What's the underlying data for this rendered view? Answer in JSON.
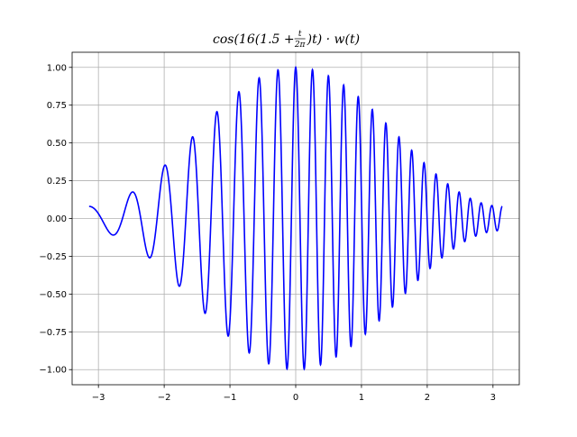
{
  "chart_data": {
    "type": "line",
    "title": "cos(16(1.5 + t/2π)t) · w(t)",
    "title_parts": {
      "prefix": "cos(16(1.5 + ",
      "frac_num": "t",
      "frac_den": "2π",
      "suffix": ")t) · w(t)"
    },
    "xlabel": "",
    "ylabel": "",
    "xlim": [
      -3.4,
      3.4
    ],
    "ylim": [
      -1.1,
      1.1
    ],
    "grid": true,
    "x_ticks": [
      -3,
      -2,
      -1,
      0,
      1,
      2,
      3
    ],
    "x_tick_labels": [
      "−3",
      "−2",
      "−1",
      "0",
      "1",
      "2",
      "3"
    ],
    "y_ticks": [
      -1.0,
      -0.75,
      -0.5,
      -0.25,
      0.0,
      0.25,
      0.5,
      0.75,
      1.0
    ],
    "y_tick_labels": [
      "−1.00",
      "−0.75",
      "−0.50",
      "−0.25",
      "0.00",
      "0.25",
      "0.50",
      "0.75",
      "1.00"
    ],
    "series": [
      {
        "color": "#0000ff",
        "function": "cos(16*(1.5 + t/(2*pi))*t) * (0.54 + 0.46*cos(t))",
        "x_range": [
          -3.14159,
          3.14159
        ],
        "samples": 2000
      }
    ]
  },
  "colors": {
    "line": "#0000ff",
    "grid": "#b0b0b0",
    "axes": "#000000"
  }
}
